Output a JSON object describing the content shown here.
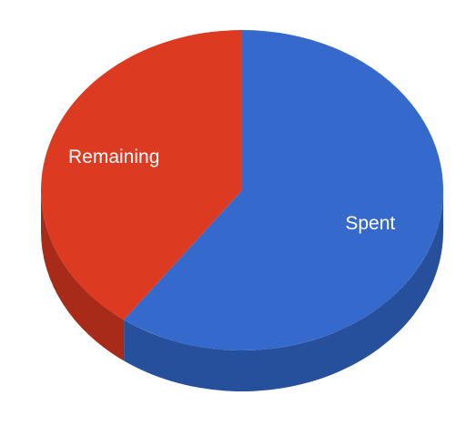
{
  "chart_data": {
    "type": "pie",
    "pie_3d": true,
    "title": "",
    "start_angle_deg": 0,
    "direction": "clockwise",
    "slices": [
      {
        "label": "Spent",
        "value": 60,
        "color": "#3669cc",
        "side_color": "#27509c"
      },
      {
        "label": "Remaining",
        "value": 40,
        "color": "#dc3a21",
        "side_color": "#a72b18"
      }
    ],
    "legend": "none",
    "background_color": "#ffffff"
  }
}
